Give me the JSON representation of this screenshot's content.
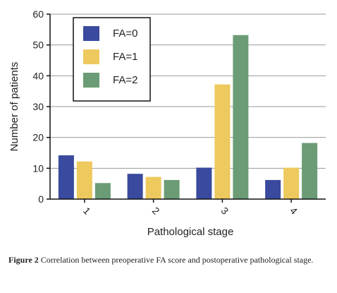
{
  "chart_data": {
    "type": "bar",
    "categories": [
      "1",
      "2",
      "3",
      "4"
    ],
    "series": [
      {
        "name": "FA=0",
        "values": [
          14.2,
          8.2,
          10.2,
          6.2
        ],
        "color": "#3a4a9e"
      },
      {
        "name": "FA=1",
        "values": [
          12.2,
          7.2,
          37.2,
          10.2
        ],
        "color": "#edc95e"
      },
      {
        "name": "FA=2",
        "values": [
          5.2,
          6.2,
          53.2,
          18.2
        ],
        "color": "#6b9c75"
      }
    ],
    "xlabel": "Pathological stage",
    "ylabel": "Number of patients",
    "ylim": [
      0,
      60
    ],
    "yticks": [
      0,
      10,
      20,
      30,
      40,
      50,
      60
    ],
    "grid": true,
    "legend_position": "top-left"
  },
  "caption": {
    "label": "Figure 2",
    "text": "Correlation between preoperative FA score and postoperative pathological stage."
  }
}
